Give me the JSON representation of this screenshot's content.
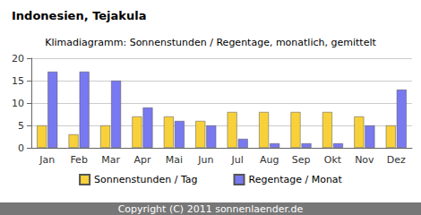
{
  "chart_data": {
    "type": "bar",
    "title": "Indonesien, Tejakula",
    "subtitle": "Klimadiagramm: Sonnenstunden / Regentage, monatlich, gemittelt",
    "footer": "Copyright (C) 2011 sonnenlaender.de",
    "categories": [
      "Jan",
      "Feb",
      "Mar",
      "Apr",
      "Mai",
      "Jun",
      "Jul",
      "Aug",
      "Sep",
      "Okt",
      "Nov",
      "Dez"
    ],
    "series": [
      {
        "name": "Sonnenstunden / Tag",
        "color": "#f8d13a",
        "values": [
          5,
          3,
          5,
          7,
          7,
          6,
          8,
          8,
          8,
          8,
          7,
          5
        ]
      },
      {
        "name": "Regentage / Monat",
        "color": "#7878f0",
        "values": [
          17,
          17,
          15,
          9,
          6,
          5,
          2,
          1,
          1,
          1,
          5,
          13
        ]
      }
    ],
    "ylim": [
      0,
      20
    ],
    "yticks": [
      0,
      5,
      10,
      15,
      20
    ],
    "grid": true,
    "legend": "bottom"
  }
}
